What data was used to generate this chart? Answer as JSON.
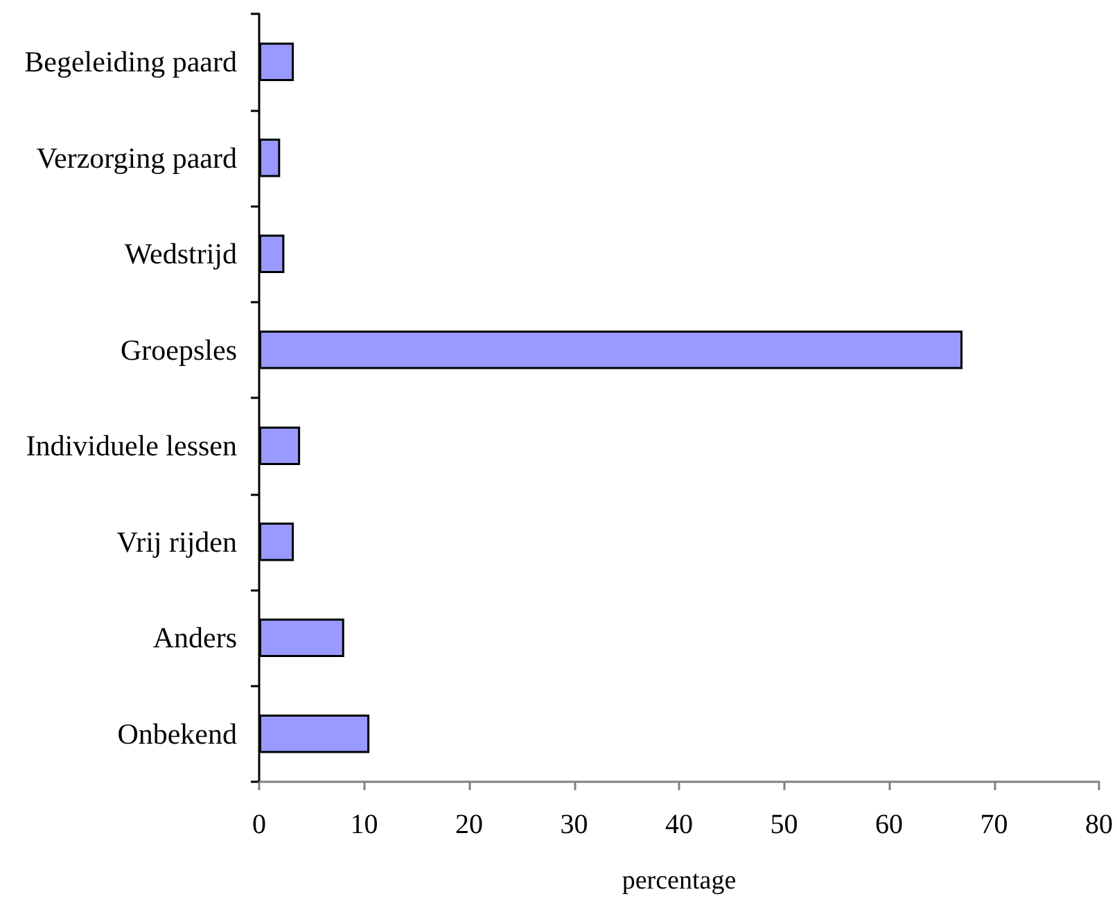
{
  "chart_data": {
    "type": "bar",
    "orientation": "horizontal",
    "xlabel": "percentage",
    "categories": [
      "Begeleiding paard",
      "Verzorging paard",
      "Wedstrijd",
      "Groepsles",
      "Individuele lessen",
      "Vrij rijden",
      "Anders",
      "Onbekend"
    ],
    "values": [
      3.3,
      2.0,
      2.4,
      67,
      3.9,
      3.3,
      8.1,
      10.5
    ],
    "color": "#9999ff",
    "xlim": [
      0,
      80
    ],
    "xticks": [
      0,
      10,
      20,
      30,
      40,
      50,
      60,
      70,
      80
    ]
  }
}
